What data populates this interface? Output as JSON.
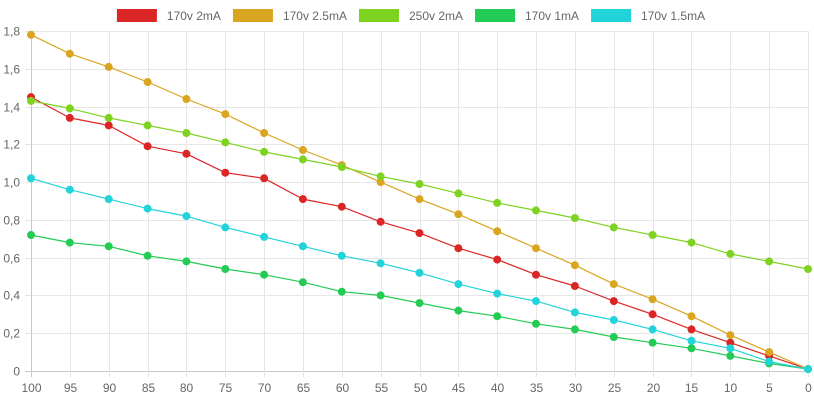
{
  "chart_data": {
    "type": "line",
    "title": "",
    "xlabel": "",
    "ylabel": "",
    "x": [
      "100",
      "95",
      "90",
      "85",
      "80",
      "75",
      "70",
      "65",
      "60",
      "55",
      "50",
      "45",
      "40",
      "35",
      "30",
      "25",
      "20",
      "15",
      "10",
      "5",
      "0"
    ],
    "ylim": [
      0,
      1.8
    ],
    "y_ticks": [
      "0",
      "0,2",
      "0,4",
      "0,6",
      "0,8",
      "1,0",
      "1,2",
      "1,4",
      "1,6",
      "1,8"
    ],
    "grid": true,
    "legend_position": "top",
    "series": [
      {
        "name": "170v 2mA",
        "color": "#dc2626",
        "values": [
          1.45,
          1.34,
          1.3,
          1.19,
          1.15,
          1.05,
          1.02,
          0.91,
          0.87,
          0.79,
          0.73,
          0.65,
          0.59,
          0.51,
          0.45,
          0.37,
          0.3,
          0.22,
          0.15,
          0.08,
          0.01
        ]
      },
      {
        "name": "170v 2.5mA",
        "color": "#daa520",
        "values": [
          1.78,
          1.68,
          1.61,
          1.53,
          1.44,
          1.36,
          1.26,
          1.17,
          1.09,
          1.0,
          0.91,
          0.83,
          0.74,
          0.65,
          0.56,
          0.46,
          0.38,
          0.29,
          0.19,
          0.1,
          0.01
        ]
      },
      {
        "name": "250v 2mA",
        "color": "#7ed321",
        "values": [
          1.43,
          1.39,
          1.34,
          1.3,
          1.26,
          1.21,
          1.16,
          1.12,
          1.08,
          1.03,
          0.99,
          0.94,
          0.89,
          0.85,
          0.81,
          0.76,
          0.72,
          0.68,
          0.62,
          0.58,
          0.54
        ]
      },
      {
        "name": "170v 1mA",
        "color": "#22cc55",
        "values": [
          0.72,
          0.68,
          0.66,
          0.61,
          0.58,
          0.54,
          0.51,
          0.47,
          0.42,
          0.4,
          0.36,
          0.32,
          0.29,
          0.25,
          0.22,
          0.18,
          0.15,
          0.12,
          0.08,
          0.04,
          0.01
        ]
      },
      {
        "name": "170v 1.5mA",
        "color": "#22d3d9",
        "values": [
          1.02,
          0.96,
          0.91,
          0.86,
          0.82,
          0.76,
          0.71,
          0.66,
          0.61,
          0.57,
          0.52,
          0.46,
          0.41,
          0.37,
          0.31,
          0.27,
          0.22,
          0.16,
          0.12,
          0.05,
          0.01
        ]
      }
    ]
  }
}
